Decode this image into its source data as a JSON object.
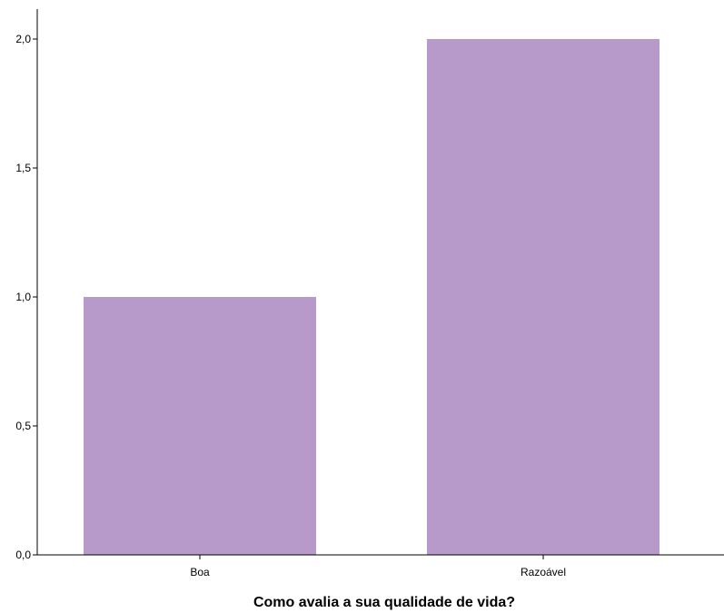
{
  "chart_data": {
    "type": "bar",
    "categories": [
      "Boa",
      "Razoável"
    ],
    "values": [
      1.0,
      2.0
    ],
    "title": "",
    "xlabel": "Como avalia a sua qualidade de vida?",
    "ylabel": "",
    "ylim": [
      0,
      2.0
    ],
    "yticks": [
      0.0,
      0.5,
      1.0,
      1.5,
      2.0
    ],
    "ytick_labels": [
      "0,0",
      "0,5",
      "1,0",
      "1,5",
      "2,0"
    ],
    "grid": false,
    "legend": "none",
    "colors": {
      "bar": "#b89aca",
      "axis": "#000000",
      "background": "#ffffff"
    }
  }
}
